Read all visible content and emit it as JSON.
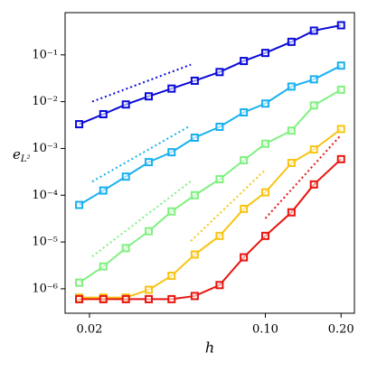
{
  "chart_data": {
    "type": "line",
    "xlabel": "h",
    "ylabel": "e",
    "ylabel_sub": "L²",
    "xscale": "log",
    "yscale": "log",
    "xlim": [
      0.016,
      0.226
    ],
    "ylim": [
      3e-07,
      0.8
    ],
    "xticks": [
      0.02,
      {
        "value": 0.1,
        "label": "0.10"
      },
      {
        "value": 0.2,
        "label": "0.20"
      }
    ],
    "yticks": [
      {
        "value": 1e-06,
        "label": "10⁻⁶"
      },
      {
        "value": 1e-05,
        "label": "10⁻⁵"
      },
      {
        "value": 0.0001,
        "label": "10⁻⁴"
      },
      {
        "value": 0.001,
        "label": "10⁻³"
      },
      {
        "value": 0.01,
        "label": "10⁻²"
      },
      {
        "value": 0.1,
        "label": "10⁻¹"
      }
    ],
    "x": [
      0.0182,
      0.0227,
      0.0279,
      0.0344,
      0.0424,
      0.0524,
      0.0658,
      0.0821,
      0.1,
      0.127,
      0.156,
      0.2
    ],
    "series": [
      {
        "color": "#0a0ad8",
        "values": [
          0.0033,
          0.0054,
          0.0087,
          0.013,
          0.019,
          0.028,
          0.043,
          0.074,
          0.11,
          0.19,
          0.33,
          0.43
        ]
      },
      {
        "color": "#1ab0f0",
        "values": [
          6.2e-05,
          0.000126,
          0.00025,
          0.00051,
          0.00083,
          0.0017,
          0.0029,
          0.0059,
          0.0091,
          0.021,
          0.03,
          0.059
        ]
      },
      {
        "color": "#80f080",
        "values": [
          1.35e-06,
          3e-06,
          7.4e-06,
          1.7e-05,
          4.5e-05,
          0.0001,
          0.00022,
          0.00056,
          0.00126,
          0.0024,
          0.0083,
          0.018
        ]
      },
      {
        "color": "#f8c414",
        "values": [
          6.5e-07,
          6.5e-07,
          6.5e-07,
          9.5e-07,
          1.9e-06,
          5.4e-06,
          1.35e-05,
          5.1e-05,
          0.000115,
          0.00049,
          0.00095,
          0.0026
        ]
      },
      {
        "color": "#e8140e",
        "values": [
          6e-07,
          6e-07,
          6e-07,
          6e-07,
          6e-07,
          7e-07,
          1.2e-06,
          4.7e-06,
          1.35e-05,
          4.3e-05,
          0.00017,
          0.00059
        ]
      }
    ],
    "reference_lines": [
      {
        "color": "#0a0ad8",
        "x": [
          0.0205,
          0.0506
        ],
        "values": [
          0.01,
          0.062
        ]
      },
      {
        "color": "#1ab0f0",
        "x": [
          0.0205,
          0.05
        ],
        "values": [
          0.000195,
          0.003
        ]
      },
      {
        "color": "#80f080",
        "x": [
          0.0205,
          0.0506
        ],
        "values": [
          4.9e-06,
          0.0002
        ]
      },
      {
        "color": "#f8c414",
        "x": [
          0.0506,
          0.1
        ],
        "values": [
          1.05e-05,
          0.00035
        ]
      },
      {
        "color": "#e8140e",
        "x": [
          0.1,
          0.2
        ],
        "values": [
          3.2e-05,
          0.00195
        ]
      }
    ]
  }
}
